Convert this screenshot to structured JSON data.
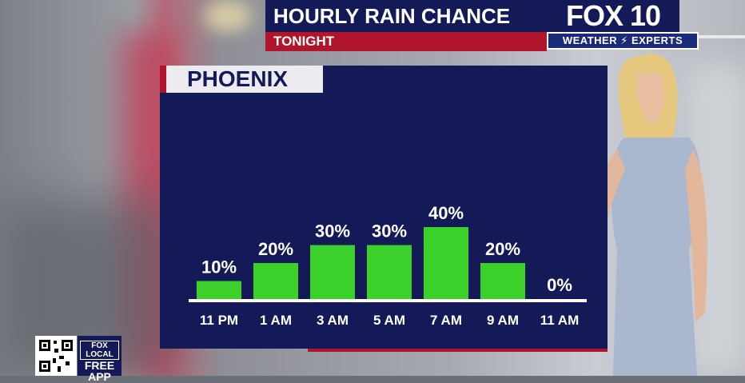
{
  "header": {
    "title": "HOURLY RAIN CHANCE",
    "subtitle": "TONIGHT"
  },
  "logo": {
    "main": "FOX 10",
    "sub": "WEATHER ⚡ EXPERTS"
  },
  "app_badge": {
    "brand": "FOX LOCAL",
    "line1": "FREE",
    "line2": "APP"
  },
  "colors": {
    "navy": "#141a58",
    "red": "#b0152c",
    "bar": "#3bd12a"
  },
  "chart_data": {
    "type": "bar",
    "title": "PHOENIX",
    "categories": [
      "11 PM",
      "1 AM",
      "3 AM",
      "5 AM",
      "7 AM",
      "9 AM",
      "11 AM"
    ],
    "values": [
      10,
      20,
      30,
      30,
      40,
      20,
      0
    ],
    "value_labels": [
      "10%",
      "20%",
      "30%",
      "30%",
      "40%",
      "20%",
      "0%"
    ],
    "unit": "%",
    "ylim": [
      0,
      40
    ],
    "grid": false
  }
}
